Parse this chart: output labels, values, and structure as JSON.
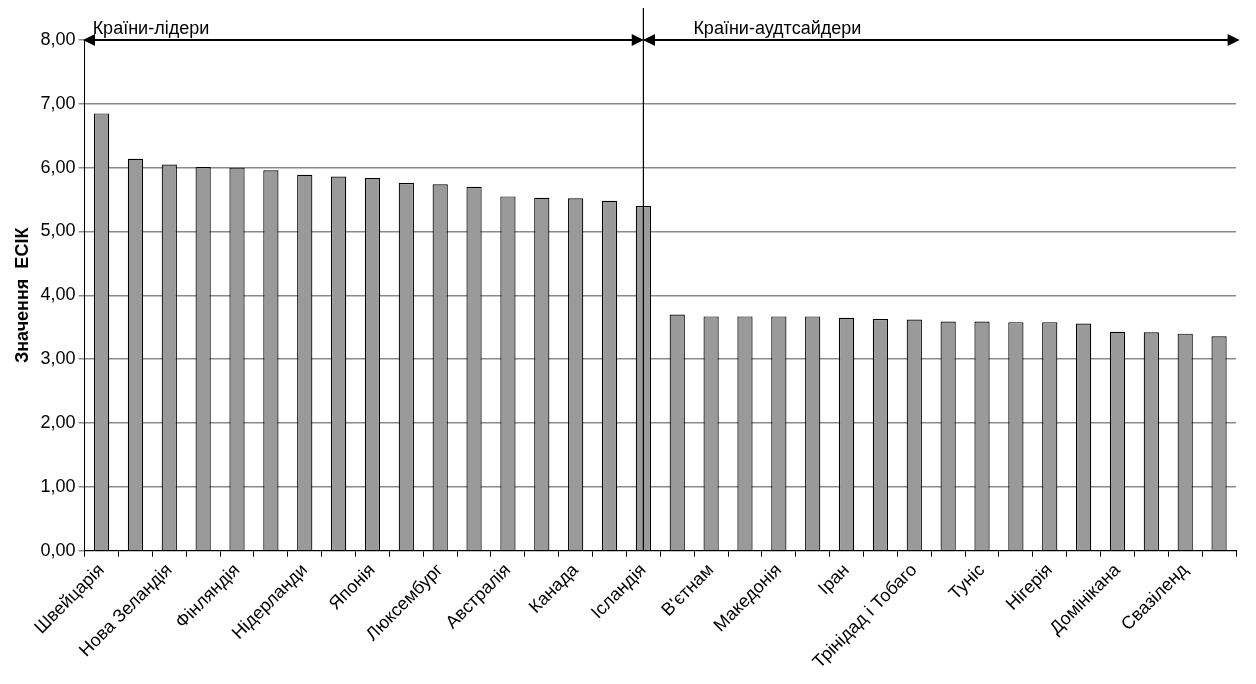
{
  "chart_data": {
    "type": "bar",
    "ylabel": "Значення  ЕСІК",
    "categories": [
      "Швейцарія",
      null,
      "Нова Зеландія",
      null,
      "Фінляндія",
      null,
      "Нідерланди",
      null,
      "Японія",
      null,
      "Люксембург",
      null,
      "Австралія",
      null,
      "Канада",
      null,
      "Ісландія",
      null,
      "В'єтнам",
      null,
      "Македонія",
      null,
      "Іран",
      null,
      "Трінідад і Тобаго",
      null,
      "Туніс",
      null,
      "Нігерія",
      null,
      "Домінікана",
      null,
      "Свазіленд",
      null
    ],
    "values": [
      6.85,
      6.14,
      6.05,
      6.01,
      6.0,
      5.96,
      5.89,
      5.86,
      5.84,
      5.76,
      5.74,
      5.7,
      5.55,
      5.53,
      5.52,
      5.48,
      5.4,
      3.7,
      3.67,
      3.67,
      3.67,
      3.67,
      3.65,
      3.63,
      3.62,
      3.59,
      3.59,
      3.58,
      3.58,
      3.56,
      3.43,
      3.42,
      3.4,
      3.36
    ],
    "color": "#9a9a9a",
    "ylim": [
      0,
      8
    ],
    "yticks": [
      {
        "value": 0,
        "label": "0,00"
      },
      {
        "value": 1,
        "label": "1,00"
      },
      {
        "value": 2,
        "label": "2,00"
      },
      {
        "value": 3,
        "label": "3,00"
      },
      {
        "value": 4,
        "label": "4,00"
      },
      {
        "value": 5,
        "label": "5,00"
      },
      {
        "value": 6,
        "label": "6,00"
      },
      {
        "value": 7,
        "label": "7,00"
      },
      {
        "value": 8,
        "label": "8,00"
      }
    ],
    "grid": "y",
    "legend": false,
    "ref_lines": [
      {
        "axis": "x",
        "value": "Ісландія",
        "color": "#000000"
      }
    ],
    "annotations": [
      "Країни-лідери",
      "Країни-аудтсайдери"
    ]
  }
}
